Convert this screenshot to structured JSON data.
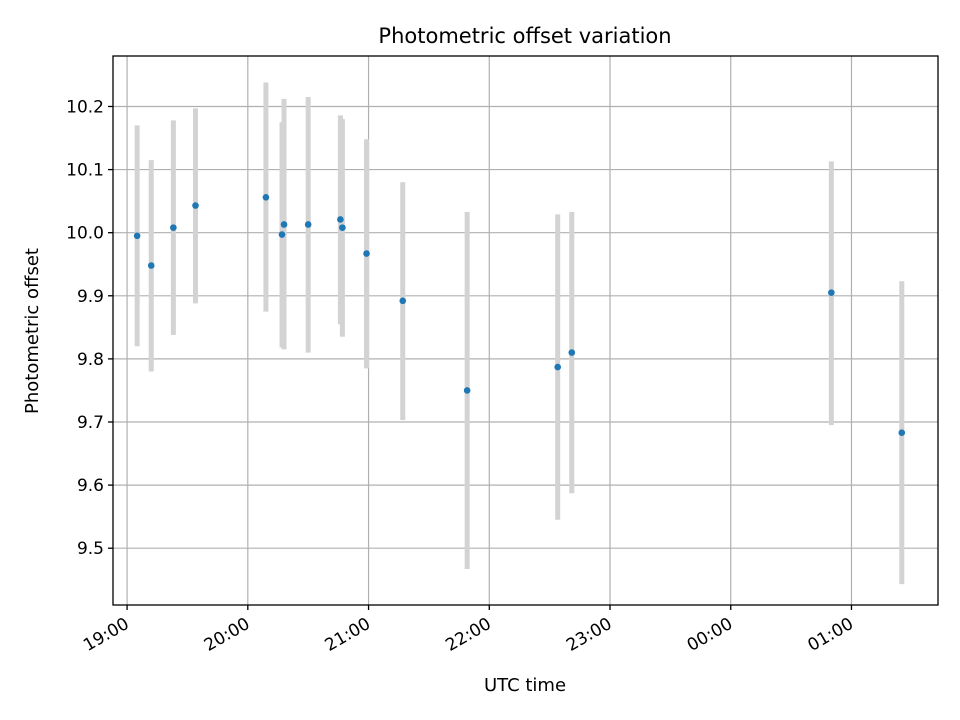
{
  "chart_data": {
    "type": "scatter",
    "title": "Photometric offset variation",
    "xlabel": "UTC time",
    "ylabel": "Photometric offset",
    "x_is_time": true,
    "xlim": [
      "18:53",
      "01:43"
    ],
    "ylim": [
      9.41,
      10.28
    ],
    "grid": true,
    "x_ticks": [
      "19:00",
      "20:00",
      "21:00",
      "22:00",
      "23:00",
      "00:00",
      "01:00"
    ],
    "y_ticks": [
      9.5,
      9.6,
      9.7,
      9.8,
      9.9,
      10.0,
      10.1,
      10.2
    ],
    "point_color": "#1f77b4",
    "errorbar_color": "#d3d3d3",
    "points": [
      {
        "time": "19:05",
        "y": 9.995,
        "err_low": 9.82,
        "err_high": 10.17
      },
      {
        "time": "19:12",
        "y": 9.948,
        "err_low": 9.78,
        "err_high": 10.115
      },
      {
        "time": "19:23",
        "y": 10.008,
        "err_low": 9.838,
        "err_high": 10.178
      },
      {
        "time": "19:34",
        "y": 10.043,
        "err_low": 9.888,
        "err_high": 10.197
      },
      {
        "time": "20:09",
        "y": 10.056,
        "err_low": 9.875,
        "err_high": 10.238
      },
      {
        "time": "20:17",
        "y": 9.997,
        "err_low": 9.818,
        "err_high": 10.175
      },
      {
        "time": "20:18",
        "y": 10.013,
        "err_low": 9.815,
        "err_high": 10.212
      },
      {
        "time": "20:30",
        "y": 10.013,
        "err_low": 9.81,
        "err_high": 10.215
      },
      {
        "time": "20:46",
        "y": 10.021,
        "err_low": 9.855,
        "err_high": 10.186
      },
      {
        "time": "20:47",
        "y": 10.008,
        "err_low": 9.835,
        "err_high": 10.18
      },
      {
        "time": "20:59",
        "y": 9.967,
        "err_low": 9.785,
        "err_high": 10.148
      },
      {
        "time": "21:17",
        "y": 9.892,
        "err_low": 9.703,
        "err_high": 10.08
      },
      {
        "time": "21:49",
        "y": 9.75,
        "err_low": 9.467,
        "err_high": 10.033
      },
      {
        "time": "22:34",
        "y": 9.787,
        "err_low": 9.545,
        "err_high": 10.029
      },
      {
        "time": "22:41",
        "y": 9.81,
        "err_low": 9.587,
        "err_high": 10.033
      },
      {
        "time": "00:50",
        "y": 9.905,
        "err_low": 9.695,
        "err_high": 10.113
      },
      {
        "time": "01:25",
        "y": 9.683,
        "err_low": 9.443,
        "err_high": 9.923
      }
    ]
  }
}
